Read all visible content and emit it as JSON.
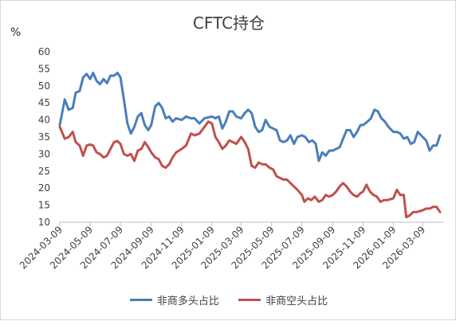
{
  "chart_data": {
    "type": "line",
    "title": "CFTC持仓",
    "ylabel": "%",
    "ylim": [
      10,
      60
    ],
    "yticks": [
      10,
      15,
      20,
      25,
      30,
      35,
      40,
      45,
      50,
      55,
      60
    ],
    "xlim": [
      "2024-03-09",
      "2026-04-21"
    ],
    "xticks": [
      "2024-03-09",
      "2024-05-09",
      "2024-07-09",
      "2024-09-09",
      "2024-11-09",
      "2025-01-09",
      "2025-03-09",
      "2025-05-09",
      "2025-07-09",
      "2025-09-09",
      "2025-11-09",
      "2026-01-09",
      "2026-03-09"
    ],
    "grid": false,
    "legend": "bottom",
    "series": [
      {
        "name": "非商多头占比",
        "color": "#4a7ebb",
        "points": [
          [
            "2024-03-09",
            38.5
          ],
          [
            "2024-03-19",
            46.0
          ],
          [
            "2024-03-27",
            43.0
          ],
          [
            "2024-04-04",
            43.5
          ],
          [
            "2024-04-10",
            48.0
          ],
          [
            "2024-04-18",
            48.5
          ],
          [
            "2024-04-25",
            52.5
          ],
          [
            "2024-05-02",
            53.5
          ],
          [
            "2024-05-09",
            52.0
          ],
          [
            "2024-05-15",
            53.8
          ],
          [
            "2024-05-22",
            51.5
          ],
          [
            "2024-05-29",
            50.5
          ],
          [
            "2024-06-05",
            52.0
          ],
          [
            "2024-06-12",
            50.8
          ],
          [
            "2024-06-19",
            53.0
          ],
          [
            "2024-06-26",
            53.0
          ],
          [
            "2024-07-03",
            53.8
          ],
          [
            "2024-07-09",
            52.5
          ],
          [
            "2024-07-16",
            46.0
          ],
          [
            "2024-07-23",
            39.0
          ],
          [
            "2024-07-30",
            36.0
          ],
          [
            "2024-08-06",
            38.0
          ],
          [
            "2024-08-13",
            41.0
          ],
          [
            "2024-08-20",
            42.0
          ],
          [
            "2024-08-27",
            38.5
          ],
          [
            "2024-09-03",
            37.0
          ],
          [
            "2024-09-09",
            38.5
          ],
          [
            "2024-09-17",
            44.0
          ],
          [
            "2024-09-24",
            45.0
          ],
          [
            "2024-10-01",
            43.5
          ],
          [
            "2024-10-08",
            40.5
          ],
          [
            "2024-10-15",
            41.0
          ],
          [
            "2024-10-22",
            39.5
          ],
          [
            "2024-10-29",
            40.5
          ],
          [
            "2024-11-09",
            40.0
          ],
          [
            "2024-11-18",
            41.0
          ],
          [
            "2024-11-28",
            40.5
          ],
          [
            "2024-12-05",
            40.5
          ],
          [
            "2024-12-15",
            39.0
          ],
          [
            "2024-12-25",
            40.5
          ],
          [
            "2025-01-09",
            41.0
          ],
          [
            "2025-01-16",
            40.5
          ],
          [
            "2025-01-23",
            41.0
          ],
          [
            "2025-01-30",
            37.5
          ],
          [
            "2025-02-06",
            39.5
          ],
          [
            "2025-02-13",
            42.5
          ],
          [
            "2025-02-20",
            42.5
          ],
          [
            "2025-02-27",
            41.0
          ],
          [
            "2025-03-09",
            40.5
          ],
          [
            "2025-03-16",
            42.0
          ],
          [
            "2025-03-23",
            43.0
          ],
          [
            "2025-03-30",
            42.0
          ],
          [
            "2025-04-06",
            38.0
          ],
          [
            "2025-04-13",
            36.5
          ],
          [
            "2025-04-20",
            37.0
          ],
          [
            "2025-04-27",
            40.0
          ],
          [
            "2025-05-05",
            38.0
          ],
          [
            "2025-05-12",
            37.5
          ],
          [
            "2025-05-19",
            37.0
          ],
          [
            "2025-05-26",
            34.0
          ],
          [
            "2025-06-02",
            33.5
          ],
          [
            "2025-06-09",
            34.0
          ],
          [
            "2025-06-16",
            35.5
          ],
          [
            "2025-06-23",
            33.0
          ],
          [
            "2025-06-30",
            35.0
          ],
          [
            "2025-07-09",
            35.5
          ],
          [
            "2025-07-16",
            35.0
          ],
          [
            "2025-07-23",
            33.5
          ],
          [
            "2025-07-30",
            34.0
          ],
          [
            "2025-08-06",
            33.0
          ],
          [
            "2025-08-12",
            28.0
          ],
          [
            "2025-08-19",
            30.5
          ],
          [
            "2025-08-26",
            29.5
          ],
          [
            "2025-09-02",
            31.0
          ],
          [
            "2025-09-09",
            31.0
          ],
          [
            "2025-09-16",
            31.5
          ],
          [
            "2025-09-23",
            32.0
          ],
          [
            "2025-09-30",
            34.5
          ],
          [
            "2025-10-07",
            37.0
          ],
          [
            "2025-10-14",
            37.0
          ],
          [
            "2025-10-21",
            35.0
          ],
          [
            "2025-10-28",
            36.5
          ],
          [
            "2025-11-04",
            38.5
          ],
          [
            "2025-11-09",
            38.5
          ],
          [
            "2025-11-18",
            39.5
          ],
          [
            "2025-11-25",
            40.5
          ],
          [
            "2025-12-02",
            43.0
          ],
          [
            "2025-12-09",
            42.5
          ],
          [
            "2025-12-16",
            40.5
          ],
          [
            "2025-12-23",
            39.5
          ],
          [
            "2025-12-30",
            38.0
          ],
          [
            "2026-01-09",
            36.5
          ],
          [
            "2026-01-16",
            36.5
          ],
          [
            "2026-01-23",
            36.0
          ],
          [
            "2026-01-30",
            34.5
          ],
          [
            "2026-02-06",
            35.0
          ],
          [
            "2026-02-13",
            33.0
          ],
          [
            "2026-02-20",
            33.5
          ],
          [
            "2026-02-27",
            36.5
          ],
          [
            "2026-03-09",
            35.0
          ],
          [
            "2026-03-16",
            34.0
          ],
          [
            "2026-03-23",
            31.0
          ],
          [
            "2026-03-30",
            32.5
          ],
          [
            "2026-04-06",
            32.5
          ],
          [
            "2026-04-13",
            35.5
          ]
        ]
      },
      {
        "name": "非商空头占比",
        "color": "#c0504d",
        "points": [
          [
            "2024-03-09",
            38.0
          ],
          [
            "2024-03-19",
            34.5
          ],
          [
            "2024-03-27",
            35.0
          ],
          [
            "2024-04-04",
            36.5
          ],
          [
            "2024-04-10",
            33.5
          ],
          [
            "2024-04-18",
            32.5
          ],
          [
            "2024-04-25",
            29.5
          ],
          [
            "2024-05-02",
            32.5
          ],
          [
            "2024-05-09",
            32.8
          ],
          [
            "2024-05-15",
            32.5
          ],
          [
            "2024-05-22",
            30.5
          ],
          [
            "2024-05-29",
            30.0
          ],
          [
            "2024-06-05",
            29.0
          ],
          [
            "2024-06-12",
            29.5
          ],
          [
            "2024-06-19",
            31.5
          ],
          [
            "2024-06-26",
            33.5
          ],
          [
            "2024-07-03",
            33.8
          ],
          [
            "2024-07-09",
            33.0
          ],
          [
            "2024-07-16",
            30.0
          ],
          [
            "2024-07-23",
            29.5
          ],
          [
            "2024-07-30",
            30.0
          ],
          [
            "2024-08-06",
            28.0
          ],
          [
            "2024-08-13",
            31.0
          ],
          [
            "2024-08-20",
            31.5
          ],
          [
            "2024-08-27",
            33.5
          ],
          [
            "2024-09-03",
            32.0
          ],
          [
            "2024-09-09",
            30.5
          ],
          [
            "2024-09-17",
            29.0
          ],
          [
            "2024-09-24",
            28.5
          ],
          [
            "2024-10-01",
            26.5
          ],
          [
            "2024-10-08",
            26.0
          ],
          [
            "2024-10-15",
            27.0
          ],
          [
            "2024-10-22",
            29.0
          ],
          [
            "2024-10-29",
            30.5
          ],
          [
            "2024-11-09",
            31.5
          ],
          [
            "2024-11-18",
            32.5
          ],
          [
            "2024-11-28",
            36.0
          ],
          [
            "2024-12-05",
            35.5
          ],
          [
            "2024-12-15",
            36.0
          ],
          [
            "2024-12-25",
            38.0
          ],
          [
            "2025-01-02",
            39.5
          ],
          [
            "2025-01-09",
            39.0
          ],
          [
            "2025-01-16",
            35.0
          ],
          [
            "2025-01-23",
            33.5
          ],
          [
            "2025-01-30",
            31.5
          ],
          [
            "2025-02-06",
            32.5
          ],
          [
            "2025-02-13",
            34.0
          ],
          [
            "2025-02-20",
            33.5
          ],
          [
            "2025-02-27",
            33.0
          ],
          [
            "2025-03-09",
            35.0
          ],
          [
            "2025-03-16",
            33.5
          ],
          [
            "2025-03-23",
            31.5
          ],
          [
            "2025-03-30",
            26.5
          ],
          [
            "2025-04-06",
            26.0
          ],
          [
            "2025-04-13",
            27.5
          ],
          [
            "2025-04-20",
            27.0
          ],
          [
            "2025-04-27",
            27.0
          ],
          [
            "2025-05-05",
            26.0
          ],
          [
            "2025-05-12",
            25.5
          ],
          [
            "2025-05-19",
            23.5
          ],
          [
            "2025-05-26",
            23.0
          ],
          [
            "2025-06-02",
            22.5
          ],
          [
            "2025-06-09",
            22.5
          ],
          [
            "2025-06-16",
            21.5
          ],
          [
            "2025-06-23",
            20.5
          ],
          [
            "2025-06-30",
            19.5
          ],
          [
            "2025-07-09",
            18.0
          ],
          [
            "2025-07-14",
            16.0
          ],
          [
            "2025-07-21",
            17.0
          ],
          [
            "2025-07-28",
            16.5
          ],
          [
            "2025-08-04",
            17.5
          ],
          [
            "2025-08-12",
            16.0
          ],
          [
            "2025-08-19",
            16.5
          ],
          [
            "2025-08-26",
            18.0
          ],
          [
            "2025-09-02",
            17.5
          ],
          [
            "2025-09-09",
            18.0
          ],
          [
            "2025-09-16",
            19.0
          ],
          [
            "2025-09-23",
            20.5
          ],
          [
            "2025-09-30",
            21.5
          ],
          [
            "2025-10-07",
            20.5
          ],
          [
            "2025-10-14",
            19.0
          ],
          [
            "2025-10-21",
            18.0
          ],
          [
            "2025-10-28",
            17.5
          ],
          [
            "2025-11-04",
            18.5
          ],
          [
            "2025-11-09",
            19.0
          ],
          [
            "2025-11-16",
            21.0
          ],
          [
            "2025-11-23",
            19.0
          ],
          [
            "2025-11-30",
            18.0
          ],
          [
            "2025-12-07",
            17.5
          ],
          [
            "2025-12-14",
            16.0
          ],
          [
            "2025-12-21",
            16.5
          ],
          [
            "2025-12-28",
            16.5
          ],
          [
            "2026-01-09",
            17.0
          ],
          [
            "2026-01-16",
            19.5
          ],
          [
            "2026-01-23",
            18.0
          ],
          [
            "2026-01-30",
            18.0
          ],
          [
            "2026-02-04",
            11.5
          ],
          [
            "2026-02-11",
            12.0
          ],
          [
            "2026-02-18",
            13.0
          ],
          [
            "2026-02-25",
            13.0
          ],
          [
            "2026-03-09",
            13.5
          ],
          [
            "2026-03-16",
            14.0
          ],
          [
            "2026-03-23",
            14.0
          ],
          [
            "2026-03-30",
            14.5
          ],
          [
            "2026-04-06",
            14.5
          ],
          [
            "2026-04-13",
            13.0
          ]
        ]
      }
    ]
  }
}
